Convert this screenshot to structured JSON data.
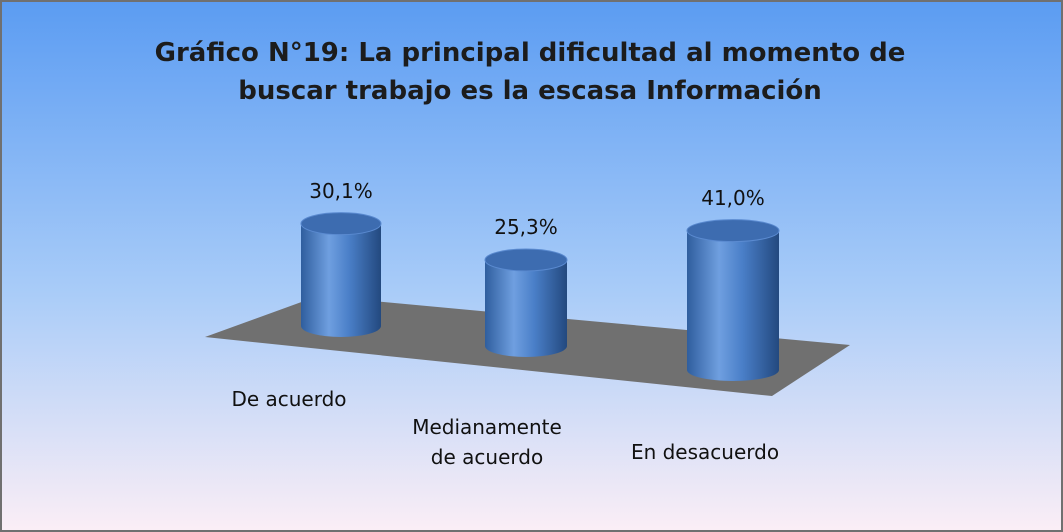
{
  "chart_data": {
    "type": "bar",
    "title": "Gráfico N°19: La principal dificultad al momento de buscar trabajo es la escasa Información",
    "categories": [
      "De acuerdo",
      "Medianamente de acuerdo",
      "En desacuerdo"
    ],
    "values": [
      30.1,
      25.3,
      41.0
    ],
    "value_labels": [
      "30,1%",
      "25,3%",
      "41,0%"
    ],
    "color": "#4a7fc8"
  }
}
